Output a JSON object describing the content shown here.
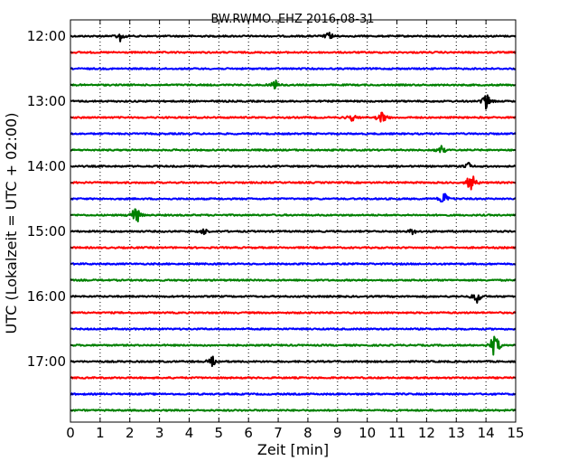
{
  "chart_data": {
    "type": "line",
    "title": "BW.RWMO..EHZ 2016-08-31",
    "xlabel": "Zeit  [min]",
    "ylabel": "UTC (Lokalzeit = UTC + 02:00)",
    "xlim": [
      0,
      15
    ],
    "x_ticks": [
      0,
      1,
      2,
      3,
      4,
      5,
      6,
      7,
      8,
      9,
      10,
      11,
      12,
      13,
      14,
      15
    ],
    "x_tick_labels": [
      "0",
      "1",
      "2",
      "3",
      "4",
      "5",
      "6",
      "7",
      "8",
      "9",
      "10",
      "11",
      "12",
      "13",
      "14",
      "15"
    ],
    "y_tick_labels": [
      "12:00",
      "13:00",
      "14:00",
      "15:00",
      "16:00",
      "17:00"
    ],
    "grid": "vertical dotted",
    "trace_colors": [
      "#000000",
      "#ff0000",
      "#0000ff",
      "#008000"
    ],
    "traces": [
      {
        "start": "12:00",
        "color": "#000000",
        "events": [
          {
            "t": 1.7,
            "amp": 0.5
          },
          {
            "t": 8.7,
            "amp": 0.35
          }
        ]
      },
      {
        "start": "12:15",
        "color": "#ff0000",
        "events": []
      },
      {
        "start": "12:30",
        "color": "#0000ff",
        "events": []
      },
      {
        "start": "12:45",
        "color": "#008000",
        "events": [
          {
            "t": 6.9,
            "amp": 0.35
          }
        ]
      },
      {
        "start": "13:00",
        "color": "#000000",
        "events": [
          {
            "t": 14.0,
            "amp": 0.7
          }
        ]
      },
      {
        "start": "13:15",
        "color": "#ff0000",
        "events": [
          {
            "t": 9.5,
            "amp": 0.3
          },
          {
            "t": 10.5,
            "amp": 0.55
          }
        ]
      },
      {
        "start": "13:30",
        "color": "#0000ff",
        "events": []
      },
      {
        "start": "13:45",
        "color": "#008000",
        "events": [
          {
            "t": 12.5,
            "amp": 0.35
          }
        ]
      },
      {
        "start": "14:00",
        "color": "#000000",
        "events": [
          {
            "t": 13.4,
            "amp": 0.3
          }
        ]
      },
      {
        "start": "14:15",
        "color": "#ff0000",
        "events": [
          {
            "t": 13.5,
            "amp": 0.9
          }
        ]
      },
      {
        "start": "14:30",
        "color": "#0000ff",
        "events": [
          {
            "t": 12.6,
            "amp": 0.6
          }
        ]
      },
      {
        "start": "14:45",
        "color": "#008000",
        "events": [
          {
            "t": 2.2,
            "amp": 0.8
          }
        ]
      },
      {
        "start": "15:00",
        "color": "#000000",
        "events": [
          {
            "t": 4.5,
            "amp": 0.25
          },
          {
            "t": 11.5,
            "amp": 0.25
          }
        ]
      },
      {
        "start": "15:15",
        "color": "#ff0000",
        "events": []
      },
      {
        "start": "15:30",
        "color": "#0000ff",
        "events": []
      },
      {
        "start": "15:45",
        "color": "#008000",
        "events": []
      },
      {
        "start": "16:00",
        "color": "#000000",
        "events": [
          {
            "t": 13.7,
            "amp": 0.55
          }
        ]
      },
      {
        "start": "16:15",
        "color": "#ff0000",
        "events": []
      },
      {
        "start": "16:30",
        "color": "#0000ff",
        "events": []
      },
      {
        "start": "16:45",
        "color": "#008000",
        "events": [
          {
            "t": 14.3,
            "amp": 1.0
          }
        ]
      },
      {
        "start": "17:00",
        "color": "#000000",
        "events": [
          {
            "t": 4.8,
            "amp": 0.4
          }
        ]
      },
      {
        "start": "17:15",
        "color": "#ff0000",
        "events": []
      },
      {
        "start": "17:30",
        "color": "#0000ff",
        "events": []
      },
      {
        "start": "17:45",
        "color": "#008000",
        "events": []
      }
    ]
  }
}
